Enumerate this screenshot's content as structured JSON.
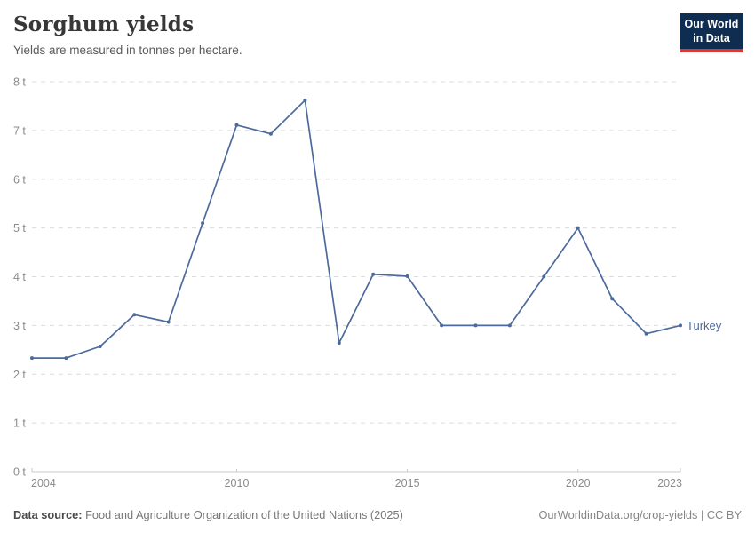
{
  "header": {
    "title": "Sorghum yields",
    "subtitle": "Yields are measured in tonnes per hectare.",
    "logo": {
      "line1": "Our World",
      "line2": "in Data",
      "bg_color": "#0f2d50",
      "accent_color": "#d73a34"
    }
  },
  "chart_data": {
    "type": "line",
    "title": "Sorghum yields",
    "subtitle": "Yields are measured in tonnes per hectare.",
    "unit": "tonnes per hectare",
    "x": [
      2004,
      2005,
      2006,
      2007,
      2008,
      2009,
      2010,
      2011,
      2012,
      2013,
      2014,
      2015,
      2016,
      2017,
      2018,
      2019,
      2020,
      2021,
      2022,
      2023
    ],
    "series": [
      {
        "name": "Turkey",
        "color": "#4c6a9c",
        "values": [
          2.33,
          2.33,
          2.57,
          3.22,
          3.07,
          5.1,
          7.11,
          6.93,
          7.62,
          2.64,
          4.05,
          4.01,
          3.0,
          3.0,
          3.0,
          4.0,
          5.0,
          3.55,
          2.83,
          3.0
        ]
      }
    ],
    "xlabel": "",
    "ylabel": "",
    "ylim": [
      0,
      8
    ],
    "yticks": [
      0,
      1,
      2,
      3,
      4,
      5,
      6,
      7,
      8
    ],
    "ytick_labels": [
      "0 t",
      "1 t",
      "2 t",
      "3 t",
      "4 t",
      "5 t",
      "6 t",
      "7 t",
      "8 t"
    ],
    "xticks": [
      2004,
      2010,
      2015,
      2020,
      2023
    ],
    "xtick_labels": [
      "2004",
      "2010",
      "2015",
      "2020",
      "2023"
    ],
    "grid": "horizontal-dashed",
    "legend_position": "end-of-line",
    "colors": {
      "gridline": "#dcdcdc",
      "axis": "#c9c9c9",
      "tick_text": "#8b8b8b"
    }
  },
  "footer": {
    "source_label": "Data source:",
    "source_text": " Food and Agriculture Organization of the United Nations (2025)",
    "attribution": "OurWorldinData.org/crop-yields | CC BY"
  }
}
